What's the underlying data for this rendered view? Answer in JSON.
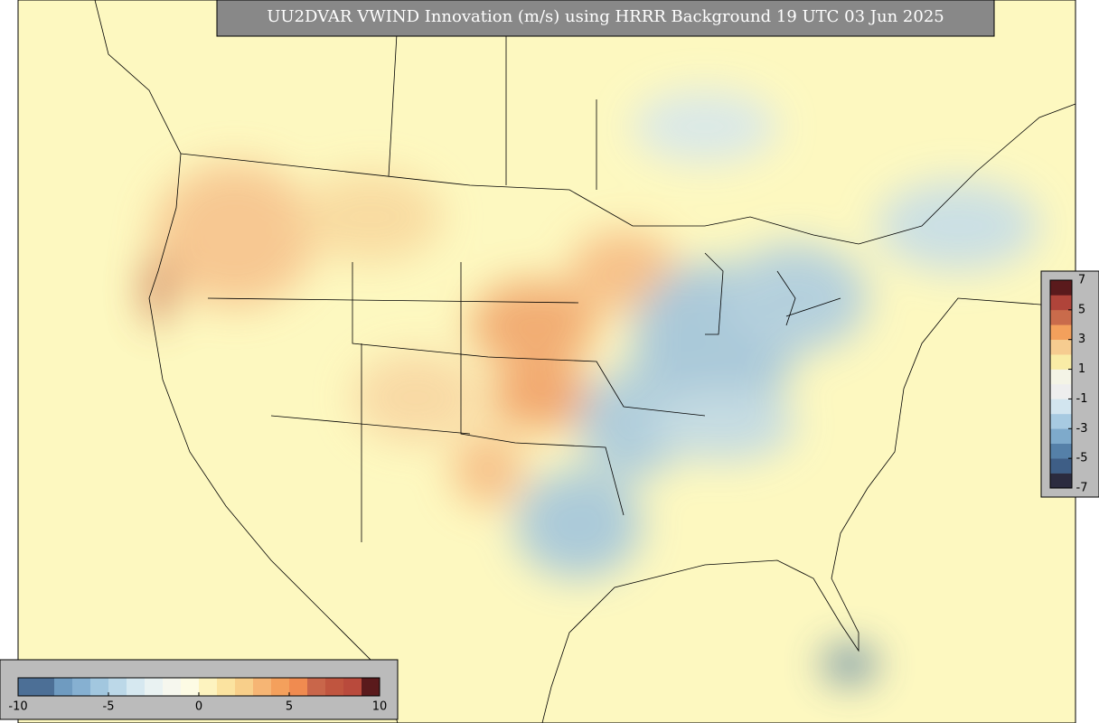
{
  "title": "UU2DVAR VWIND Innovation (m/s) using HRRR Background 19 UTC 03 Jun 2025",
  "colorbars": [
    {
      "range": [
        -7,
        7
      ],
      "ticks": [
        7,
        5,
        3,
        1,
        -1,
        -3,
        -5,
        -7
      ],
      "colors": [
        "#2b2b3f",
        "#3e5e86",
        "#5580a8",
        "#7eaacb",
        "#a7cae1",
        "#d2e5ef",
        "#eeeeee",
        "#f4f4e6",
        "#f9eca6",
        "#f6cc90",
        "#f3a05c",
        "#c96b4b",
        "#b0443a",
        "#5a1a1c"
      ]
    },
    {
      "range": [
        -10,
        10
      ],
      "ticks": [
        -10,
        -5,
        0,
        5,
        10
      ],
      "colors": [
        "#4c6f96",
        "#4c6f96",
        "#6f9bc0",
        "#86b0d1",
        "#a2c7df",
        "#bcd8e8",
        "#d6e8f0",
        "#e9f2f2",
        "#f6f7ee",
        "#fdfbe4",
        "#fdf3bf",
        "#fbe3a0",
        "#f8cf8a",
        "#f6b574",
        "#f4a05c",
        "#f08b50",
        "#c9664a",
        "#c0553f",
        "#b94a3c",
        "#5a1a1c"
      ]
    }
  ]
}
